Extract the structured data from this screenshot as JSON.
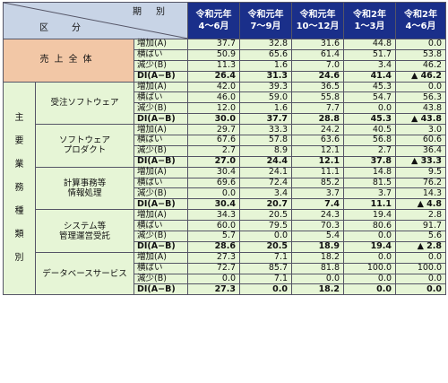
{
  "header": {
    "period_label": "期　別",
    "category_label": "区　分",
    "periods": [
      {
        "line1": "令和元年",
        "line2": "4〜6月"
      },
      {
        "line1": "令和元年",
        "line2": "7〜9月"
      },
      {
        "line1": "令和元年",
        "line2": "10〜12月"
      },
      {
        "line1": "令和2年",
        "line2": "1〜3月"
      },
      {
        "line1": "令和2年",
        "line2": "4〜6月"
      }
    ]
  },
  "row_labels": [
    "増加(A)",
    "横ばい",
    "減少(B)",
    "DI(A−B)"
  ],
  "sales_total": {
    "label": "売上全体",
    "rows": [
      [
        "37.7",
        "32.8",
        "31.6",
        "44.8",
        "0.0"
      ],
      [
        "50.9",
        "65.6",
        "61.4",
        "51.7",
        "53.8"
      ],
      [
        "11.3",
        "1.6",
        "7.0",
        "3.4",
        "46.2"
      ],
      [
        "26.4",
        "31.3",
        "24.6",
        "41.4",
        "▲ 46.2"
      ]
    ]
  },
  "main_type_label": "主要業務種類別",
  "categories": [
    {
      "name_lines": [
        "受注ソフトウェア"
      ],
      "rows": [
        [
          "42.0",
          "39.3",
          "36.5",
          "45.3",
          "0.0"
        ],
        [
          "46.0",
          "59.0",
          "55.8",
          "54.7",
          "56.3"
        ],
        [
          "12.0",
          "1.6",
          "7.7",
          "0.0",
          "43.8"
        ],
        [
          "30.0",
          "37.7",
          "28.8",
          "45.3",
          "▲ 43.8"
        ]
      ]
    },
    {
      "name_lines": [
        "ソフトウェア",
        "プロダクト"
      ],
      "rows": [
        [
          "29.7",
          "33.3",
          "24.2",
          "40.5",
          "3.0"
        ],
        [
          "67.6",
          "57.8",
          "63.6",
          "56.8",
          "60.6"
        ],
        [
          "2.7",
          "8.9",
          "12.1",
          "2.7",
          "36.4"
        ],
        [
          "27.0",
          "24.4",
          "12.1",
          "37.8",
          "▲ 33.3"
        ]
      ]
    },
    {
      "name_lines": [
        "計算事務等",
        "情報処理"
      ],
      "rows": [
        [
          "30.4",
          "24.1",
          "11.1",
          "14.8",
          "9.5"
        ],
        [
          "69.6",
          "72.4",
          "85.2",
          "81.5",
          "76.2"
        ],
        [
          "0.0",
          "3.4",
          "3.7",
          "3.7",
          "14.3"
        ],
        [
          "30.4",
          "20.7",
          "7.4",
          "11.1",
          "▲ 4.8"
        ]
      ]
    },
    {
      "name_lines": [
        "システム等",
        "管理運営受託"
      ],
      "rows": [
        [
          "34.3",
          "20.5",
          "24.3",
          "19.4",
          "2.8"
        ],
        [
          "60.0",
          "79.5",
          "70.3",
          "80.6",
          "91.7"
        ],
        [
          "5.7",
          "0.0",
          "5.4",
          "0.0",
          "5.6"
        ],
        [
          "28.6",
          "20.5",
          "18.9",
          "19.4",
          "▲ 2.8"
        ]
      ]
    },
    {
      "name_lines": [
        "データベースサービス"
      ],
      "rows": [
        [
          "27.3",
          "7.1",
          "18.2",
          "0.0",
          "0.0"
        ],
        [
          "72.7",
          "85.7",
          "81.8",
          "100.0",
          "100.0"
        ],
        [
          "0.0",
          "7.1",
          "0.0",
          "0.0",
          "0.0"
        ],
        [
          "27.3",
          "0.0",
          "18.2",
          "0.0",
          "0.0"
        ]
      ]
    }
  ],
  "colors": {
    "header_period_bg": "#1a2f8a",
    "header_corner_bg": "#c8d4e6",
    "sales_label_bg": "#f2c7a6",
    "cell_bg": "#e6f5d6"
  }
}
